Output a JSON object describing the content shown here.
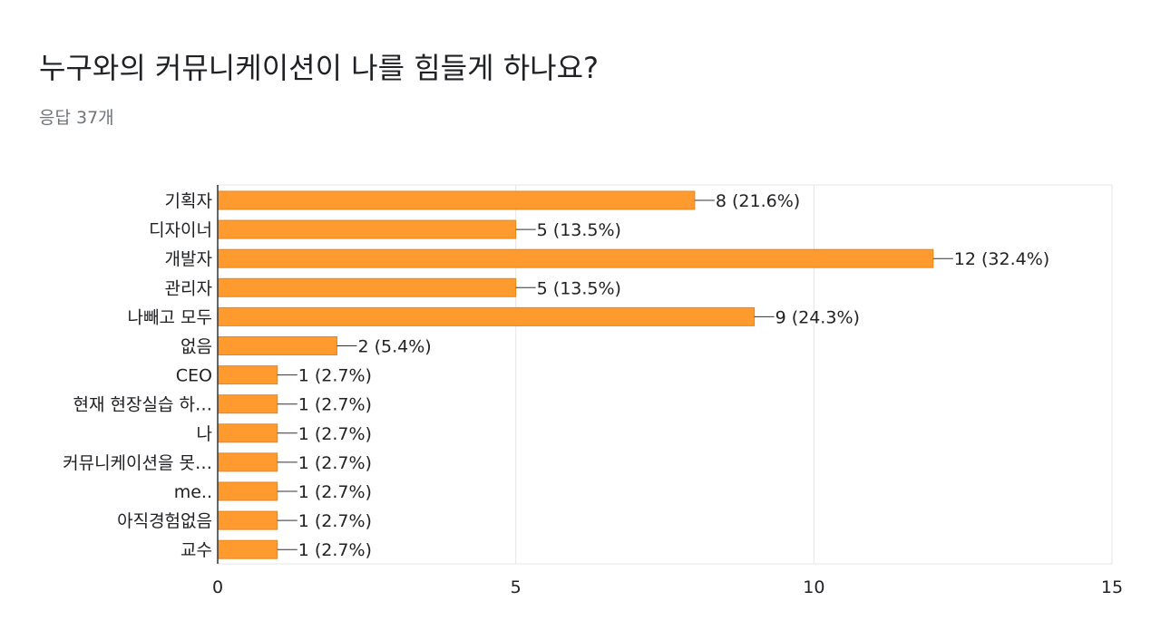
{
  "header": {
    "title": "누구와의 커뮤니케이션이 나를 힘들게 하나요?",
    "response_count": "응답 37개"
  },
  "colors": {
    "bar": "#ff9a2e",
    "bar_stroke": "#e8861c",
    "grid": "#e6e6e6",
    "axis": "#333333",
    "text": "#202124",
    "subtext": "#70757a"
  },
  "chart_data": {
    "type": "bar",
    "orientation": "horizontal",
    "categories": [
      "기획자",
      "디자이너",
      "개발자",
      "관리자",
      "나빼고 모두",
      "없음",
      "CEO",
      "현재 현장실습 하…",
      "나",
      "커뮤니케이션을 못…",
      "me..",
      "아직경험없음",
      "교수"
    ],
    "values": [
      8,
      5,
      12,
      5,
      9,
      2,
      1,
      1,
      1,
      1,
      1,
      1,
      1
    ],
    "data_labels": [
      "8 (21.6%)",
      "5 (13.5%)",
      "12 (32.4%)",
      "5 (13.5%)",
      "9 (24.3%)",
      "2 (5.4%)",
      "1 (2.7%)",
      "1 (2.7%)",
      "1 (2.7%)",
      "1 (2.7%)",
      "1 (2.7%)",
      "1 (2.7%)",
      "1 (2.7%)"
    ],
    "xlim": [
      0,
      15
    ],
    "x_ticks": [
      "0",
      "5",
      "10",
      "15"
    ],
    "grid": true
  }
}
